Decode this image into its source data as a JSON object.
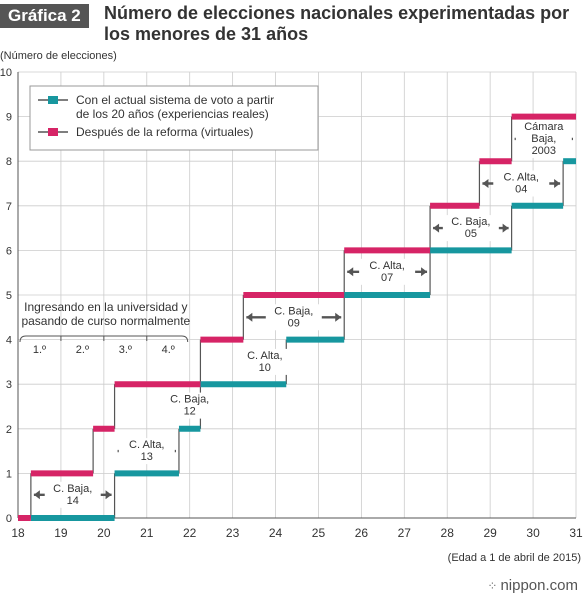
{
  "header": {
    "badge": "Gráfica 2",
    "title": "Número de elecciones nacionales experimentadas por los menores de 31 años"
  },
  "brand": {
    "icon": "dots-icon",
    "text": "nippon.com"
  },
  "colors": {
    "actual": "#17979f",
    "reform": "#d62466",
    "axis": "#555555",
    "grid": "#cccccc",
    "connector": "#555555"
  },
  "chart_data": {
    "type": "line",
    "step": true,
    "ylabel": "(Número de elecciones)",
    "xlabel": "(Edad a 1 de abril de 2015)",
    "xlim": [
      18,
      31
    ],
    "ylim": [
      0,
      10
    ],
    "x_ticks": [
      18,
      19,
      20,
      21,
      22,
      23,
      24,
      25,
      26,
      27,
      28,
      29,
      30,
      31
    ],
    "y_ticks": [
      0,
      1,
      2,
      3,
      4,
      5,
      6,
      7,
      8,
      9,
      10
    ],
    "grid": true,
    "legend_position": "top-left",
    "series": [
      {
        "name": "Con el actual sistema de voto a partir de los 20 años (experiencias reales)",
        "key": "actual",
        "steps": [
          {
            "x0": 18.3,
            "x1": 20.25,
            "y": 0
          },
          {
            "x0": 20.25,
            "x1": 21.75,
            "y": 1
          },
          {
            "x0": 21.75,
            "x1": 22.25,
            "y": 2
          },
          {
            "x0": 22.25,
            "x1": 24.25,
            "y": 3
          },
          {
            "x0": 24.25,
            "x1": 25.6,
            "y": 4
          },
          {
            "x0": 25.6,
            "x1": 27.6,
            "y": 5
          },
          {
            "x0": 27.6,
            "x1": 29.5,
            "y": 6
          },
          {
            "x0": 29.5,
            "x1": 30.7,
            "y": 7
          },
          {
            "x0": 30.7,
            "x1": 31,
            "y": 8
          }
        ]
      },
      {
        "name": "Después de la reforma (virtuales)",
        "key": "reform",
        "steps": [
          {
            "x0": 18,
            "x1": 18.3,
            "y": 0
          },
          {
            "x0": 18.3,
            "x1": 19.75,
            "y": 1
          },
          {
            "x0": 19.75,
            "x1": 20.25,
            "y": 2
          },
          {
            "x0": 20.25,
            "x1": 22.25,
            "y": 3
          },
          {
            "x0": 22.25,
            "x1": 23.25,
            "y": 4
          },
          {
            "x0": 23.25,
            "x1": 25.6,
            "y": 5
          },
          {
            "x0": 25.6,
            "x1": 27.6,
            "y": 6
          },
          {
            "x0": 27.6,
            "x1": 28.75,
            "y": 7
          },
          {
            "x0": 28.75,
            "x1": 29.5,
            "y": 8
          },
          {
            "x0": 29.5,
            "x1": 31,
            "y": 9
          }
        ]
      }
    ],
    "annotations": [
      {
        "lines": [
          "C. Baja,",
          "14"
        ],
        "x0": 18.3,
        "x1": 20.25,
        "y": 0.52
      },
      {
        "lines": [
          "C. Alta,",
          "13"
        ],
        "x0": 20.25,
        "x1": 21.75,
        "y": 1.5
      },
      {
        "lines": [
          "C. Baja,",
          "12"
        ],
        "x0": 21.75,
        "x1": 22.25,
        "y": 2.52
      },
      {
        "lines": [
          "C. Alta,",
          "10"
        ],
        "x0": 23.25,
        "x1": 24.25,
        "y": 3.5
      },
      {
        "lines": [
          "C. Baja,",
          "09"
        ],
        "x0": 23.25,
        "x1": 25.6,
        "y": 4.5
      },
      {
        "lines": [
          "C. Alta,",
          "07"
        ],
        "x0": 25.6,
        "x1": 27.6,
        "y": 5.52
      },
      {
        "lines": [
          "C. Baja,",
          "05"
        ],
        "x0": 27.6,
        "x1": 29.5,
        "y": 6.5
      },
      {
        "lines": [
          "C. Alta,",
          "04"
        ],
        "x0": 28.75,
        "x1": 30.7,
        "y": 7.5
      },
      {
        "lines": [
          "Cámara",
          "Baja,",
          "2003"
        ],
        "x0": 29.5,
        "x1": 31,
        "y": 8.5
      }
    ],
    "university_note": {
      "text": [
        "Ingresando en la universidad y",
        "pasando de curso normalmente"
      ],
      "years": [
        "1.º",
        "2.º",
        "3.º",
        "4.º"
      ]
    }
  }
}
